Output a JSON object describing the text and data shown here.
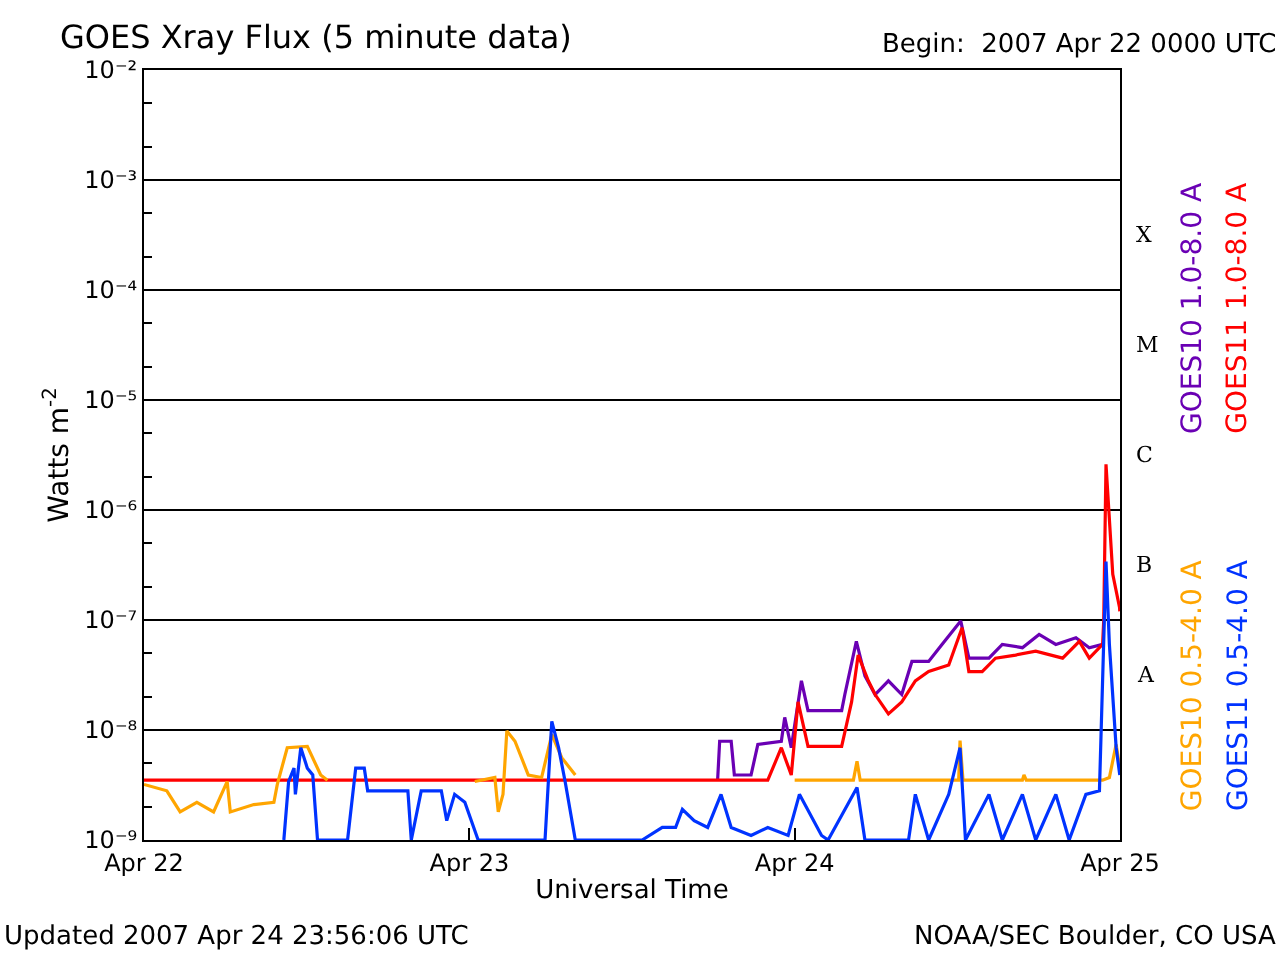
{
  "chart_data": {
    "type": "line",
    "title": "GOES Xray Flux (5 minute data)",
    "subtitle": "Begin:  2007 Apr 22 0000 UTC",
    "xlabel": "Universal Time",
    "ylabel": "Watts m$^{-2}$",
    "log": "y",
    "grid": "y",
    "legend": "right",
    "marker": "none",
    "line_style": "solid",
    "xlim": [
      "2007-04-22T00:00",
      "2007-04-25T00:00"
    ],
    "xticks": [
      {
        "value": "2007-04-22T00:00",
        "label": "Apr 22"
      },
      {
        "value": "2007-04-23T00:00",
        "label": "Apr 23"
      },
      {
        "value": "2007-04-24T00:00",
        "label": "Apr 24"
      },
      {
        "value": "2007-04-25T00:00",
        "label": "Apr 25"
      }
    ],
    "ylim": [
      1e-09,
      0.01
    ],
    "yticks": [
      {
        "value": 1e-09,
        "label": "10⁻⁹"
      },
      {
        "value": 1e-08,
        "label": "10⁻⁸"
      },
      {
        "value": 1e-07,
        "label": "10⁻⁷"
      },
      {
        "value": 1e-06,
        "label": "10⁻⁶"
      },
      {
        "value": 1e-05,
        "label": "10⁻⁵"
      },
      {
        "value": 0.0001,
        "label": "10⁻⁴"
      },
      {
        "value": 0.001,
        "label": "10⁻³"
      },
      {
        "value": 0.01,
        "label": "10⁻²"
      }
    ],
    "annotations": [
      "Updated 2007 Apr 24 23:56:06 UTC",
      "NOAA/SEC Boulder, CO USA",
      "X",
      "M",
      "C",
      "B",
      "A"
    ],
    "series": [
      {
        "name": "GOES10 1.0-8.0 A",
        "color": "#6a00b4",
        "x": [
          "2007-04-23T18:19",
          "2007-04-23T18:28",
          "2007-04-23T19:19",
          "2007-04-23T19:33",
          "2007-04-23T20:47",
          "2007-04-23T21:17",
          "2007-04-23T23:01",
          "2007-04-23T23:16",
          "2007-04-23T23:45",
          "2007-04-24T00:30",
          "2007-04-24T00:59",
          "2007-04-24T03:28",
          "2007-04-24T03:42",
          "2007-04-24T04:33",
          "2007-04-24T05:11",
          "2007-04-24T05:56",
          "2007-04-24T06:55",
          "2007-04-24T07:54",
          "2007-04-24T08:39",
          "2007-04-24T09:53",
          "2007-04-24T10:52",
          "2007-04-24T12:15",
          "2007-04-24T12:51",
          "2007-04-24T14:20",
          "2007-04-24T15:19",
          "2007-04-24T16:48",
          "2007-04-24T18:02",
          "2007-04-24T19:16",
          "2007-04-24T20:45",
          "2007-04-24T21:44",
          "2007-04-24T22:43"
        ],
        "values": [
          3.5e-09,
          7.9e-09,
          7.9e-09,
          3.9e-09,
          3.9e-09,
          7.4e-09,
          7.9e-09,
          1.3e-08,
          6.9e-09,
          2.8e-08,
          1.5e-08,
          1.5e-08,
          2.1e-08,
          6.4e-08,
          3.1e-08,
          2.1e-08,
          2.8e-08,
          2.1e-08,
          4.2e-08,
          4.2e-08,
          6e-08,
          9.8e-08,
          4.5e-08,
          4.5e-08,
          6e-08,
          5.6e-08,
          7.4e-08,
          6e-08,
          6.9e-08,
          5.6e-08,
          6e-08
        ]
      },
      {
        "name": "GOES11 1.0-8.0 A",
        "color": "#ff0000",
        "x": [
          "2007-04-22T00:00",
          "2007-04-23T22:01",
          "2007-04-23T23:01",
          "2007-04-23T23:45",
          "2007-04-24T00:15",
          "2007-04-24T00:59",
          "2007-04-24T03:28",
          "2007-04-24T04:12",
          "2007-04-24T04:41",
          "2007-04-24T05:26",
          "2007-04-24T05:56",
          "2007-04-24T06:55",
          "2007-04-24T07:54",
          "2007-04-24T08:54",
          "2007-04-24T09:53",
          "2007-04-24T11:22",
          "2007-04-24T12:21",
          "2007-04-24T12:51",
          "2007-04-24T13:50",
          "2007-04-24T14:49",
          "2007-04-24T16:18",
          "2007-04-24T17:47",
          "2007-04-24T19:46",
          "2007-04-24T21:00",
          "2007-04-24T21:44",
          "2007-04-24T22:43",
          "2007-04-24T22:48",
          "2007-04-24T22:58",
          "2007-04-24T23:28",
          "2007-04-24T23:58",
          "2007-04-24T23:59"
        ],
        "values": [
          3.5e-09,
          3.5e-09,
          6.9e-09,
          3.9e-09,
          1.8e-08,
          7.1e-09,
          7.1e-09,
          1.8e-08,
          4.8e-08,
          2.8e-08,
          2.1e-08,
          1.4e-08,
          1.8e-08,
          2.8e-08,
          3.4e-08,
          3.9e-08,
          8.5e-08,
          3.4e-08,
          3.4e-08,
          4.5e-08,
          4.8e-08,
          5.2e-08,
          4.5e-08,
          6.4e-08,
          4.5e-08,
          6e-08,
          1e-07,
          2.6e-06,
          2.6e-07,
          1.3e-07,
          1.2e-07
        ]
      },
      {
        "name": "GOES10 0.5-4.0 A",
        "color": "#ffa500",
        "x": [
          "2007-04-22T00:00",
          "2007-04-22T01:41",
          "2007-04-22T02:40",
          "2007-04-22T03:54",
          "2007-04-22T05:08",
          "2007-04-22T06:08",
          "2007-04-22T06:22",
          "2007-04-22T08:06",
          "2007-04-22T09:35",
          "2007-04-22T09:50",
          "2007-04-22T10:34",
          "2007-04-22T12:03",
          "2007-04-22T13:02",
          "2007-04-22T13:32",
          "2007-04-22T18:00",
          "2007-04-23T00:24",
          "2007-04-23T01:53",
          "2007-04-23T02:08",
          "2007-04-23T02:29",
          "2007-04-23T02:46",
          "2007-04-23T03:22",
          "2007-04-23T04:21",
          "2007-04-23T05:20",
          "2007-04-23T06:05",
          "2007-04-23T06:49",
          "2007-04-23T07:49",
          "2007-04-23T16:00",
          "2007-04-24T00:00",
          "2007-04-24T04:20",
          "2007-04-24T04:36",
          "2007-04-24T04:50",
          "2007-04-24T12:06",
          "2007-04-24T12:12",
          "2007-04-24T12:25",
          "2007-04-24T16:48",
          "2007-04-24T16:55",
          "2007-04-24T17:05",
          "2007-04-24T22:43",
          "2007-04-24T23:13",
          "2007-04-24T23:43",
          "2007-04-24T23:59"
        ],
        "values": [
          3.2e-09,
          2.8e-09,
          1.8e-09,
          2.2e-09,
          1.8e-09,
          3.4e-09,
          1.8e-09,
          2.1e-09,
          2.2e-09,
          3.2e-09,
          6.9e-09,
          7.1e-09,
          3.9e-09,
          3.5e-09,
          null,
          3.4e-09,
          3.7e-09,
          1.8e-09,
          2.6e-09,
          9.8e-09,
          7.9e-09,
          3.9e-09,
          3.7e-09,
          9.1e-09,
          5.6e-09,
          3.9e-09,
          null,
          3.5e-09,
          3.5e-09,
          5.2e-09,
          3.5e-09,
          3.5e-09,
          8e-09,
          3.5e-09,
          3.5e-09,
          3.9e-09,
          3.5e-09,
          3.5e-09,
          3.7e-09,
          7.4e-09,
          4.5e-09
        ]
      },
      {
        "name": "GOES11 0.5-4.0 A",
        "color": "#0033ff",
        "x": [
          "2007-04-22T10:19",
          "2007-04-22T10:40",
          "2007-04-22T11:04",
          "2007-04-22T11:10",
          "2007-04-22T11:34",
          "2007-04-22T12:03",
          "2007-04-22T12:27",
          "2007-04-22T12:48",
          "2007-04-22T15:01",
          "2007-04-22T15:37",
          "2007-04-22T16:15",
          "2007-04-22T16:30",
          "2007-04-22T19:28",
          "2007-04-22T19:43",
          "2007-04-22T20:27",
          "2007-04-22T21:56",
          "2007-04-22T22:20",
          "2007-04-22T22:55",
          "2007-04-22T23:40",
          "2007-04-23T00:39",
          "2007-04-23T05:35",
          "2007-04-23T06:05",
          "2007-04-23T06:35",
          "2007-04-23T07:04",
          "2007-04-23T07:49",
          "2007-04-23T12:45",
          "2007-04-23T14:14",
          "2007-04-23T15:13",
          "2007-04-23T15:43",
          "2007-04-23T16:35",
          "2007-04-23T17:35",
          "2007-04-23T18:34",
          "2007-04-23T19:19",
          "2007-04-23T20:47",
          "2007-04-23T22:01",
          "2007-04-23T23:31",
          "2007-04-24T00:21",
          "2007-04-24T01:59",
          "2007-04-24T02:28",
          "2007-04-24T04:36",
          "2007-04-24T05:11",
          "2007-04-24T08:24",
          "2007-04-24T08:54",
          "2007-04-24T09:53",
          "2007-04-24T11:22",
          "2007-04-24T12:12",
          "2007-04-24T12:36",
          "2007-04-24T14:20",
          "2007-04-24T15:19",
          "2007-04-24T16:48",
          "2007-04-24T17:47",
          "2007-04-24T19:16",
          "2007-04-24T20:15",
          "2007-04-24T21:29",
          "2007-04-24T22:29",
          "2007-04-24T22:58",
          "2007-04-24T23:13",
          "2007-04-24T23:43",
          "2007-04-24T23:59"
        ],
        "values": [
          1e-09,
          3.4e-09,
          4.5e-09,
          2.6e-09,
          6.9e-09,
          4.5e-09,
          3.9e-09,
          1e-09,
          1e-09,
          4.5e-09,
          4.5e-09,
          2.8e-09,
          2.8e-09,
          1e-09,
          2.8e-09,
          2.8e-09,
          1.5e-09,
          2.6e-09,
          2.2e-09,
          1e-09,
          1e-09,
          1.2e-08,
          6.9e-09,
          3.4e-09,
          1e-09,
          1e-09,
          1.3e-09,
          1.3e-09,
          1.9e-09,
          1.5e-09,
          1.3e-09,
          2.6e-09,
          1.3e-09,
          1.1e-09,
          1.3e-09,
          1.1e-09,
          2.6e-09,
          1.1e-09,
          1e-09,
          3e-09,
          1e-09,
          1e-09,
          2.6e-09,
          1e-09,
          2.6e-09,
          6.9e-09,
          1e-09,
          2.6e-09,
          1e-09,
          2.6e-09,
          1e-09,
          2.6e-09,
          1e-09,
          2.6e-09,
          2.8e-09,
          3.4e-07,
          6e-08,
          6.9e-09,
          3.9e-09
        ]
      }
    ]
  }
}
